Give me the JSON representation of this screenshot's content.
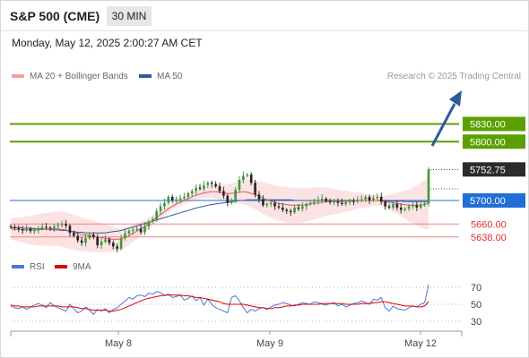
{
  "header": {
    "title": "S&P 500 (CME)",
    "timeframe": "30 MIN",
    "datetime": "Monday, May 12, 2025 2:00:27 AM CET",
    "credit": "Research © 2025 Trading Central"
  },
  "legend": {
    "ma20": "MA 20 + Bollinger Bands",
    "ma50": "MA 50",
    "rsi": "RSI",
    "rsi_ma": "9MA"
  },
  "colors": {
    "ma20": "#f08080",
    "ma50": "#2e5a9c",
    "resistance": "#5aa000",
    "pivot": "#1f6fd6",
    "support": "#f08080",
    "rsi": "#4d78d6",
    "rsi_ma": "#e00000",
    "arrow": "#2e5a9c",
    "current_price": "#2b2b2b"
  },
  "chart_data": [
    {
      "type": "candlestick",
      "title": "S&P 500 (CME) 30 MIN",
      "x_ticks": [
        "May 8",
        "May 9",
        "May 12"
      ],
      "ylim": [
        5590,
        5850
      ],
      "levels": [
        {
          "value": 5830.0,
          "label": "5830.00",
          "role": "resistance"
        },
        {
          "value": 5800.0,
          "label": "5800.00",
          "role": "resistance"
        },
        {
          "value": 5752.75,
          "label": "5752.75",
          "role": "last"
        },
        {
          "value": 5700.0,
          "label": "5700.00",
          "role": "pivot"
        },
        {
          "value": 5660.0,
          "label": "5660.00",
          "role": "support"
        },
        {
          "value": 5638.0,
          "label": "5638.00",
          "role": "support"
        }
      ],
      "candles_close": [
        5655,
        5653,
        5651,
        5649,
        5652,
        5648,
        5650,
        5652,
        5655,
        5654,
        5653,
        5656,
        5658,
        5660,
        5657,
        5645,
        5640,
        5632,
        5628,
        5636,
        5642,
        5638,
        5624,
        5630,
        5634,
        5628,
        5622,
        5618,
        5636,
        5644,
        5648,
        5650,
        5652,
        5646,
        5656,
        5664,
        5668,
        5682,
        5690,
        5696,
        5706,
        5700,
        5702,
        5704,
        5706,
        5712,
        5716,
        5722,
        5720,
        5726,
        5730,
        5728,
        5724,
        5716,
        5708,
        5696,
        5700,
        5718,
        5735,
        5742,
        5744,
        5730,
        5710,
        5702,
        5692,
        5694,
        5696,
        5690,
        5688,
        5684,
        5682,
        5680,
        5688,
        5686,
        5690,
        5694,
        5696,
        5698,
        5701,
        5703,
        5699,
        5697,
        5698,
        5696,
        5694,
        5697,
        5699,
        5698,
        5701,
        5702,
        5706,
        5700,
        5704,
        5706,
        5698,
        5690,
        5688,
        5694,
        5688,
        5684,
        5686,
        5690,
        5692,
        5688,
        5693,
        5695,
        5752.75
      ],
      "ma20": [
        5652,
        5651,
        5651,
        5650,
        5650,
        5650,
        5650,
        5650,
        5651,
        5651,
        5652,
        5652,
        5652,
        5651,
        5650,
        5648,
        5646,
        5644,
        5642,
        5641,
        5640,
        5639,
        5638,
        5637,
        5636,
        5635,
        5634,
        5634,
        5635,
        5637,
        5640,
        5644,
        5648,
        5652,
        5656,
        5661,
        5666,
        5671,
        5676,
        5681,
        5686,
        5690,
        5694,
        5697,
        5700,
        5703,
        5706,
        5709,
        5711,
        5713,
        5714,
        5715,
        5715,
        5714,
        5713,
        5712,
        5712,
        5713,
        5714,
        5715,
        5714,
        5712,
        5710,
        5707,
        5704,
        5701,
        5699,
        5697,
        5695,
        5694,
        5693,
        5692,
        5692,
        5692,
        5692,
        5693,
        5694,
        5695,
        5696,
        5697,
        5698,
        5698,
        5698,
        5698,
        5698,
        5699,
        5699,
        5699,
        5700,
        5700,
        5700,
        5700,
        5700,
        5700,
        5699,
        5698,
        5697,
        5696,
        5695,
        5694,
        5693,
        5692,
        5692,
        5692,
        5692,
        5693,
        5696
      ],
      "ma50": [
        5654,
        5654,
        5654,
        5653,
        5653,
        5653,
        5652,
        5652,
        5652,
        5651,
        5651,
        5650,
        5650,
        5649,
        5649,
        5648,
        5647,
        5646,
        5646,
        5645,
        5645,
        5645,
        5645,
        5645,
        5645,
        5646,
        5647,
        5648,
        5649,
        5651,
        5653,
        5655,
        5657,
        5659,
        5661,
        5663,
        5665,
        5667,
        5669,
        5671,
        5673,
        5675,
        5677,
        5679,
        5681,
        5683,
        5685,
        5687,
        5689,
        5690,
        5692,
        5693,
        5694,
        5695,
        5696,
        5697,
        5698,
        5699,
        5700,
        5700,
        5701,
        5701,
        5701,
        5701,
        5701,
        5701,
        5701,
        5701,
        5701,
        5701,
        5701,
        5701,
        5700,
        5700,
        5700,
        5700,
        5700,
        5700,
        5700,
        5700,
        5700,
        5700,
        5700,
        5700,
        5700,
        5700,
        5700,
        5700,
        5700,
        5700,
        5700,
        5700,
        5700,
        5700,
        5700,
        5699,
        5699,
        5699,
        5699,
        5699,
        5698,
        5698,
        5698,
        5698,
        5698,
        5698,
        5698
      ]
    },
    {
      "type": "line",
      "title": "RSI",
      "ylim": [
        20,
        80
      ],
      "y_ticks": [
        70,
        50,
        30
      ],
      "series": [
        {
          "name": "RSI",
          "values": [
            48,
            46,
            45,
            47,
            44,
            47,
            49,
            51,
            49,
            46,
            52,
            48,
            46,
            44,
            42,
            50,
            45,
            40,
            42,
            47,
            43,
            38,
            44,
            42,
            45,
            40,
            44,
            46,
            50,
            54,
            58,
            56,
            60,
            61,
            59,
            63,
            62,
            65,
            64,
            60,
            62,
            58,
            59,
            61,
            55,
            57,
            60,
            54,
            58,
            49,
            56,
            50,
            46,
            44,
            42,
            40,
            58,
            60,
            54,
            46,
            40,
            44,
            42,
            45,
            46,
            44,
            47,
            49,
            50,
            52,
            51,
            49,
            48,
            50,
            52,
            51,
            50,
            53,
            52,
            50,
            49,
            51,
            52,
            48,
            50,
            47,
            49,
            51,
            52,
            54,
            52,
            50,
            56,
            55,
            58,
            46,
            42,
            48,
            45,
            44,
            43,
            46,
            48,
            47,
            50,
            52,
            73
          ]
        },
        {
          "name": "9MA",
          "values": [
            49,
            48,
            48,
            47,
            47,
            47,
            47,
            48,
            48,
            48,
            48,
            48,
            48,
            47,
            47,
            47,
            47,
            46,
            45,
            45,
            44,
            43,
            43,
            43,
            43,
            42,
            42,
            43,
            44,
            46,
            48,
            50,
            52,
            54,
            56,
            57,
            58,
            59,
            60,
            61,
            61,
            61,
            61,
            61,
            60,
            60,
            59,
            58,
            58,
            57,
            56,
            55,
            54,
            53,
            51,
            50,
            50,
            50,
            50,
            50,
            49,
            48,
            47,
            46,
            46,
            45,
            45,
            46,
            46,
            47,
            48,
            48,
            49,
            49,
            50,
            50,
            50,
            50,
            50,
            51,
            51,
            51,
            51,
            51,
            51,
            50,
            50,
            50,
            50,
            51,
            51,
            51,
            52,
            52,
            53,
            53,
            52,
            51,
            50,
            49,
            48,
            48,
            48,
            47,
            47,
            48,
            53
          ]
        }
      ]
    }
  ]
}
